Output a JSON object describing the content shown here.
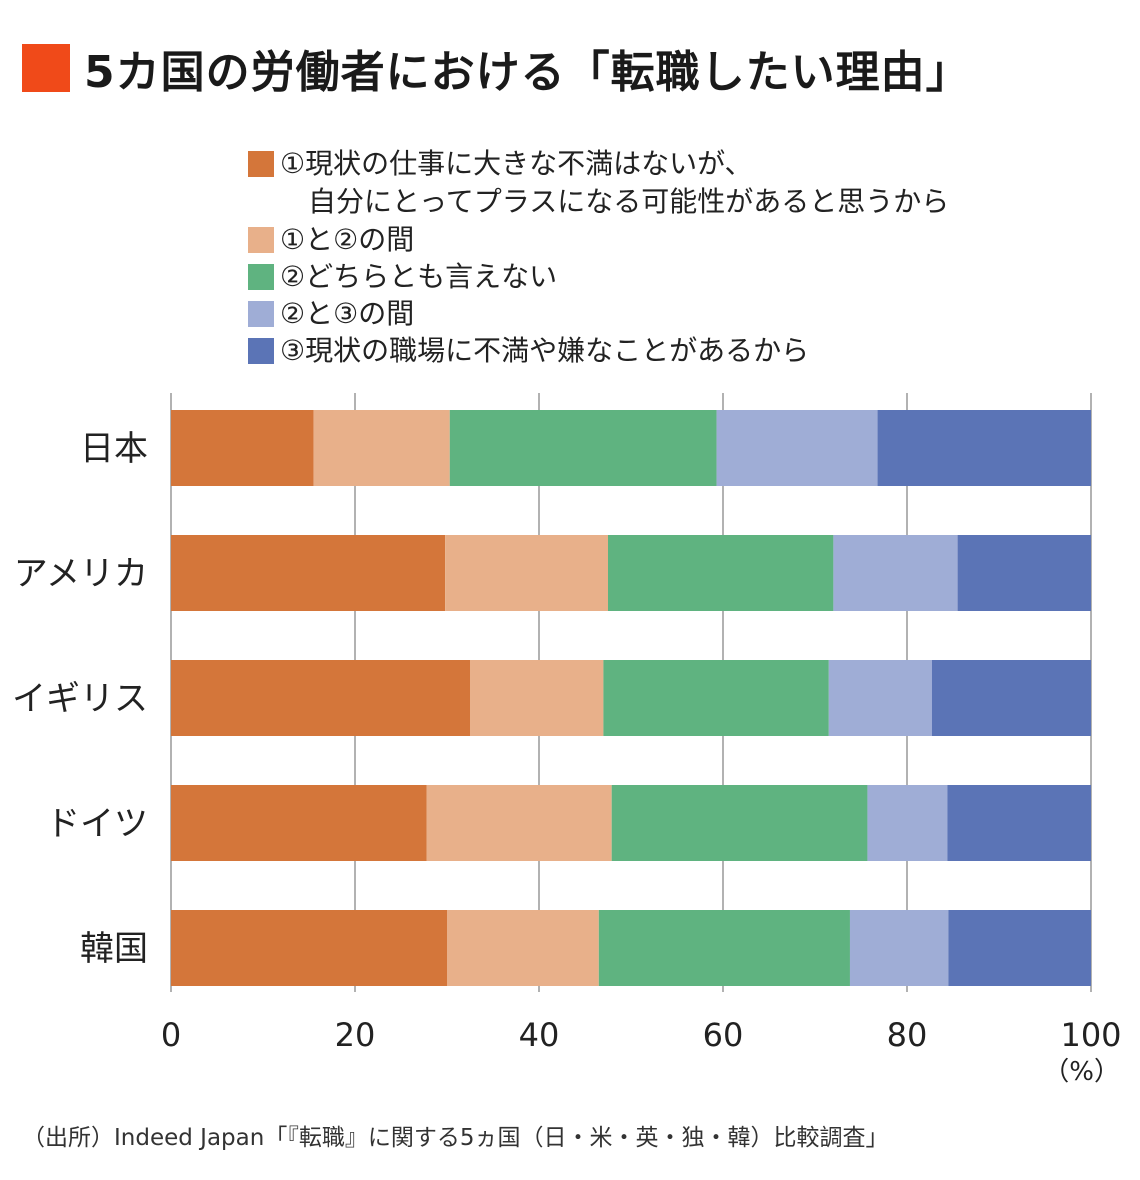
{
  "title": "5カ国の労働者における「転職したい理由」",
  "colors": {
    "title_marker": "#f04a19",
    "series": [
      "#d4763a",
      "#e8b08a",
      "#5fb380",
      "#9fadd6",
      "#5b74b6"
    ],
    "gridline": "#999999"
  },
  "source": "（出所）Indeed Japan「『転職』に関する5ヵ国（日・米・英・独・韓）比較調査」",
  "chart_data": {
    "type": "bar",
    "orientation": "horizontal",
    "stacked": true,
    "categories": [
      "日本",
      "アメリカ",
      "イギリス",
      "ドイツ",
      "韓国"
    ],
    "series": [
      {
        "name": "①現状の仕事に大きな不満はないが、\n　自分にとってプラスになる可能性があると思うから",
        "values": [
          15.5,
          29.8,
          32.5,
          27.8,
          30.0
        ]
      },
      {
        "name": "①と②の間",
        "values": [
          14.8,
          17.7,
          14.5,
          20.1,
          16.5
        ]
      },
      {
        "name": "②どちらとも言えない",
        "values": [
          29.0,
          24.5,
          24.5,
          27.8,
          27.3
        ]
      },
      {
        "name": "②と③の間",
        "values": [
          17.5,
          13.5,
          11.2,
          8.7,
          10.7
        ]
      },
      {
        "name": "③現状の職場に不満や嫌なことがあるから",
        "values": [
          23.2,
          14.5,
          17.3,
          15.6,
          15.5
        ]
      }
    ],
    "xlim": [
      0,
      100
    ],
    "xticks": [
      "0",
      "20",
      "40",
      "60",
      "80",
      "100"
    ],
    "x_unit": "（%）",
    "grid": true,
    "legend_position": "top"
  }
}
